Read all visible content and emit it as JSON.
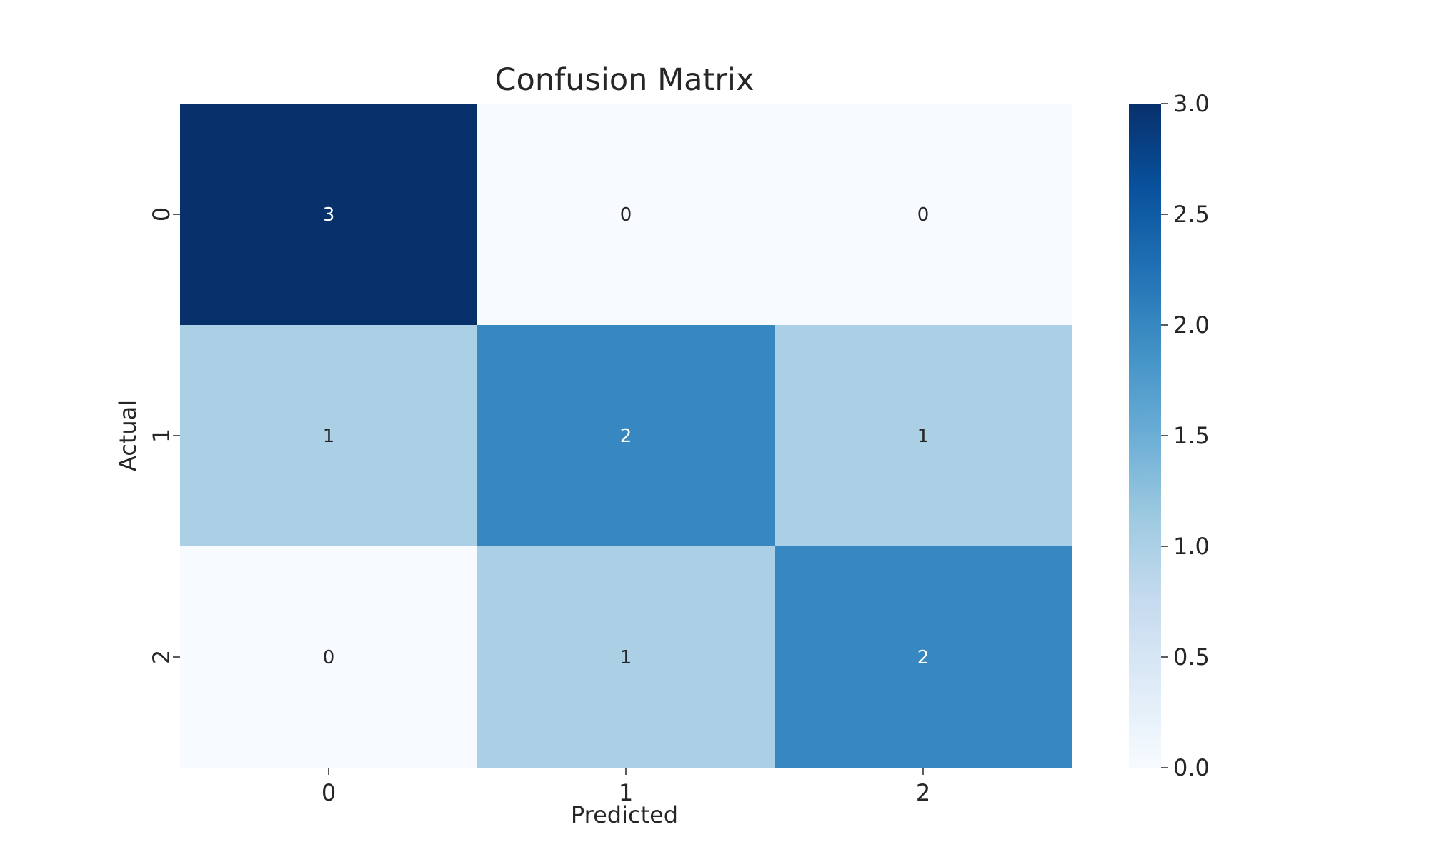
{
  "chart_data": {
    "type": "heatmap",
    "title": "Confusion Matrix",
    "xlabel": "Predicted",
    "ylabel": "Actual",
    "x_categories": [
      "0",
      "1",
      "2"
    ],
    "y_categories": [
      "0",
      "1",
      "2"
    ],
    "values": [
      [
        3,
        0,
        0
      ],
      [
        1,
        2,
        1
      ],
      [
        0,
        1,
        2
      ]
    ],
    "colormap": "Blues",
    "colorbar": {
      "range": [
        0.0,
        3.0
      ],
      "ticks": [
        "0.0",
        "0.5",
        "1.0",
        "1.5",
        "2.0",
        "2.5",
        "3.0"
      ]
    },
    "grid": false
  }
}
